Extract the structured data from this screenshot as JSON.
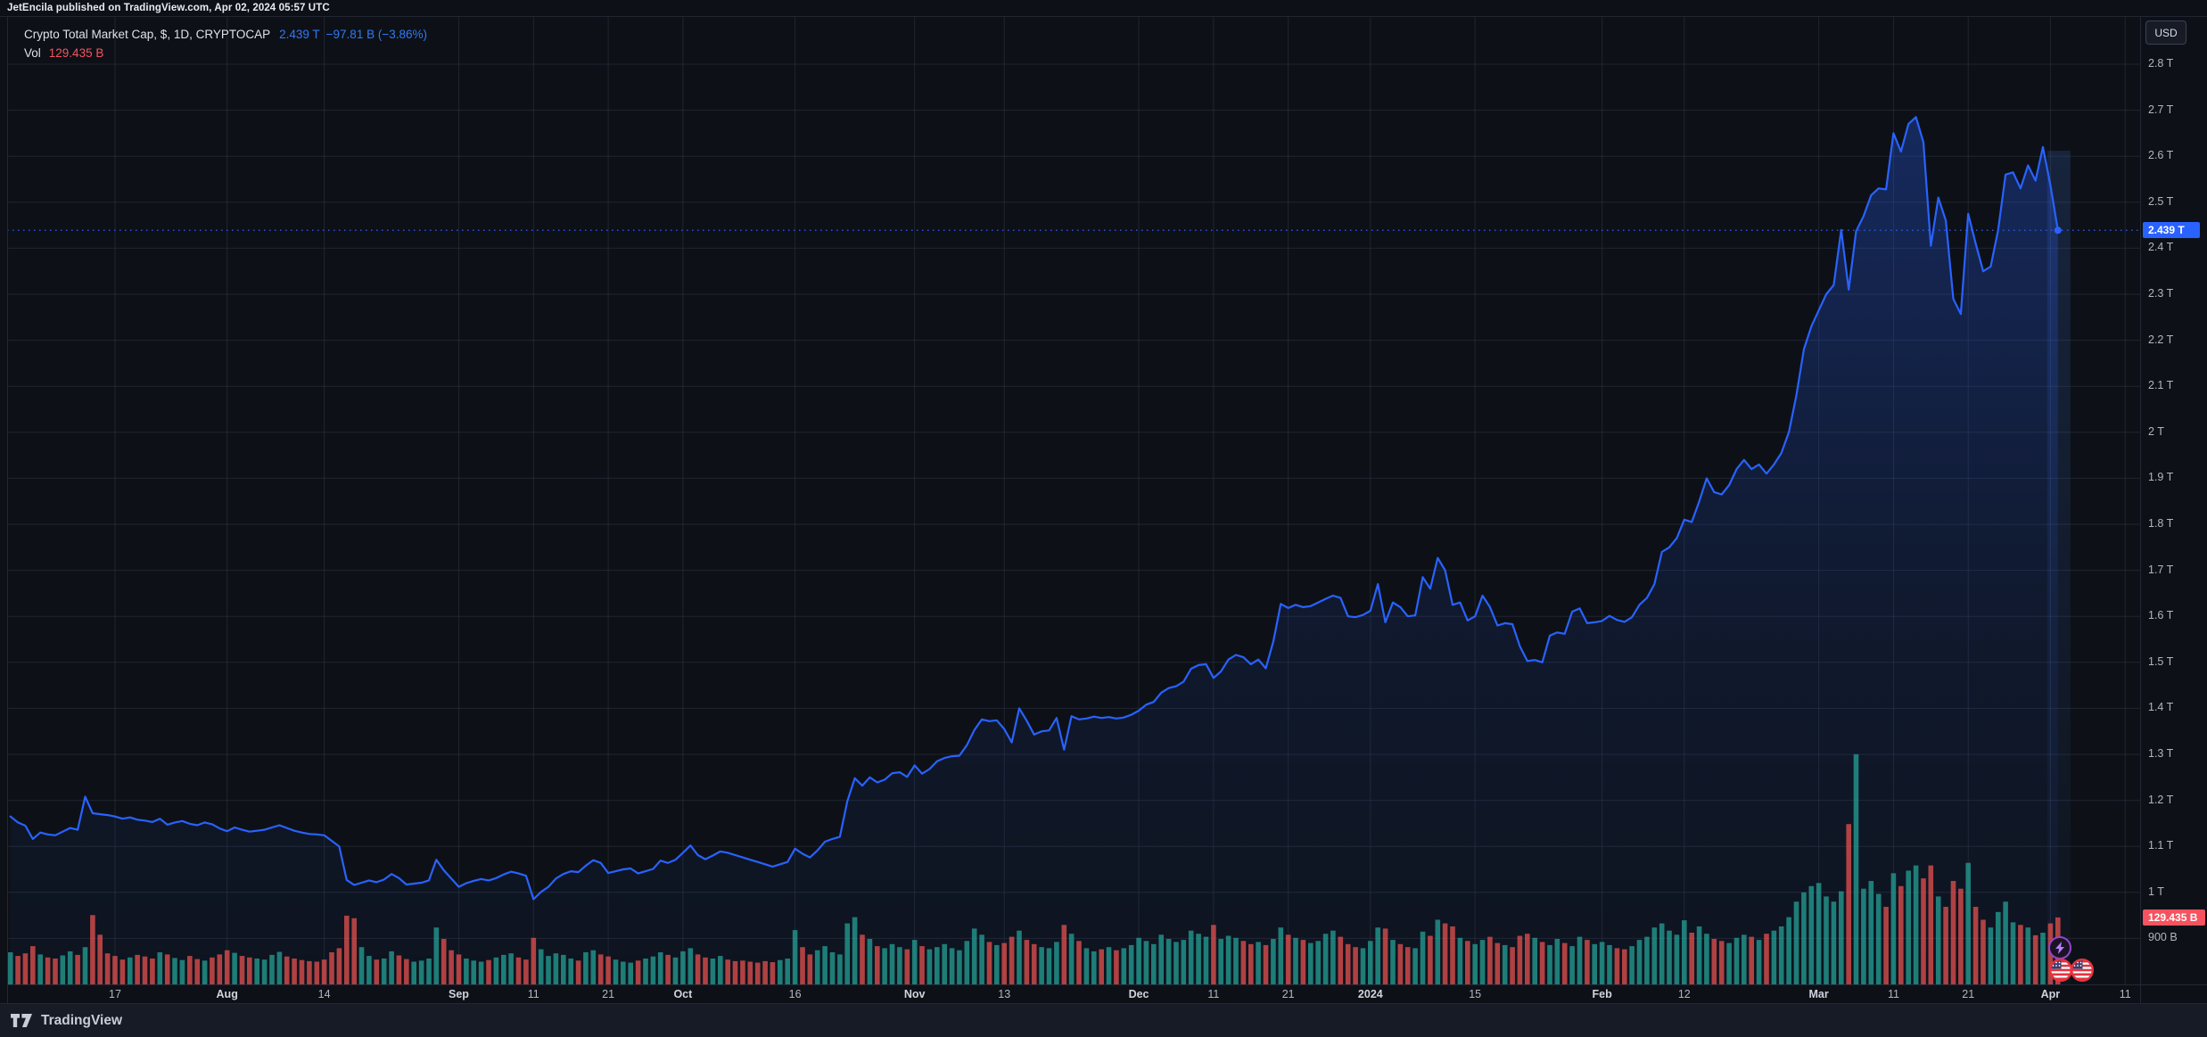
{
  "attribution": {
    "text": "JetEncila published on TradingView.com, Apr 02, 2024 05:57 UTC"
  },
  "legend": {
    "title": "Crypto Total Market Cap, $, 1D, CRYPTOCAP",
    "value": "2.439 T",
    "change": "−97.81 B (−3.86%)",
    "vol_label": "Vol",
    "vol_value": "129.435 B"
  },
  "price_axis": {
    "currency_button": "USD",
    "last_price_label": "2.439 T",
    "volume_label": "129.435 B",
    "ticks": [
      {
        "label": "2.8 T",
        "v": 2.8
      },
      {
        "label": "2.7 T",
        "v": 2.7
      },
      {
        "label": "2.6 T",
        "v": 2.6
      },
      {
        "label": "2.5 T",
        "v": 2.5
      },
      {
        "label": "2.4 T",
        "v": 2.4
      },
      {
        "label": "2.3 T",
        "v": 2.3
      },
      {
        "label": "2.2 T",
        "v": 2.2
      },
      {
        "label": "2.1 T",
        "v": 2.1
      },
      {
        "label": "2 T",
        "v": 2.0
      },
      {
        "label": "1.9 T",
        "v": 1.9
      },
      {
        "label": "1.8 T",
        "v": 1.8
      },
      {
        "label": "1.7 T",
        "v": 1.7
      },
      {
        "label": "1.6 T",
        "v": 1.6
      },
      {
        "label": "1.5 T",
        "v": 1.5
      },
      {
        "label": "1.4 T",
        "v": 1.4
      },
      {
        "label": "1.3 T",
        "v": 1.3
      },
      {
        "label": "1.2 T",
        "v": 1.2
      },
      {
        "label": "1.1 T",
        "v": 1.1
      },
      {
        "label": "1 T",
        "v": 1.0
      },
      {
        "label": "900 B",
        "v": 0.9
      }
    ]
  },
  "time_axis": {
    "ticks": [
      {
        "label": "17",
        "d": 14
      },
      {
        "label": "Aug",
        "d": 29,
        "month": true
      },
      {
        "label": "14",
        "d": 42
      },
      {
        "label": "Sep",
        "d": 60,
        "month": true
      },
      {
        "label": "11",
        "d": 70
      },
      {
        "label": "21",
        "d": 80
      },
      {
        "label": "Oct",
        "d": 90,
        "month": true
      },
      {
        "label": "16",
        "d": 105
      },
      {
        "label": "Nov",
        "d": 121,
        "month": true
      },
      {
        "label": "13",
        "d": 133
      },
      {
        "label": "Dec",
        "d": 151,
        "month": true
      },
      {
        "label": "11",
        "d": 161
      },
      {
        "label": "21",
        "d": 171
      },
      {
        "label": "2024",
        "d": 182,
        "month": true
      },
      {
        "label": "15",
        "d": 196
      },
      {
        "label": "Feb",
        "d": 213,
        "month": true
      },
      {
        "label": "12",
        "d": 224
      },
      {
        "label": "Mar",
        "d": 242,
        "month": true
      },
      {
        "label": "11",
        "d": 252
      },
      {
        "label": "21",
        "d": 262
      },
      {
        "label": "Apr",
        "d": 273,
        "month": true
      },
      {
        "label": "11",
        "d": 283
      }
    ]
  },
  "events": [
    {
      "icon": "lightning-event-icon",
      "ring": "#9146c8",
      "glyph": "#b87ef7"
    },
    {
      "icon": "us-flag-event-icon"
    },
    {
      "icon": "us-flag-event-icon"
    }
  ],
  "branding": {
    "name": "TradingView"
  },
  "chart_data": {
    "type": "area",
    "title": "Crypto Total Market Cap",
    "symbol": "CRYPTOCAP",
    "currency": "$",
    "interval": "1D",
    "start_date": "2023-07-03",
    "end_date": "2024-04-02",
    "last_close_T": 2.439,
    "change_B": -97.81,
    "change_pct": -3.86,
    "last_volume_B": 129.435,
    "ylim_T": [
      0.85,
      2.85
    ],
    "grid": true,
    "colors": {
      "line": "#2962ff",
      "area_top": "rgba(41,98,255,0.30)",
      "area_bottom": "rgba(41,98,255,0.03)",
      "vol_up": "#26a69a",
      "vol_down": "#ef5350",
      "price_label_bg": "#2962ff",
      "vol_label_bg": "#f7525f"
    },
    "close_T": [
      1.165,
      1.152,
      1.145,
      1.116,
      1.13,
      1.126,
      1.124,
      1.132,
      1.14,
      1.136,
      1.208,
      1.172,
      1.17,
      1.168,
      1.165,
      1.16,
      1.163,
      1.158,
      1.156,
      1.153,
      1.16,
      1.147,
      1.152,
      1.155,
      1.149,
      1.146,
      1.152,
      1.148,
      1.139,
      1.133,
      1.141,
      1.136,
      1.132,
      1.134,
      1.136,
      1.141,
      1.146,
      1.14,
      1.134,
      1.13,
      1.127,
      1.126,
      1.124,
      1.112,
      1.1,
      1.027,
      1.016,
      1.021,
      1.026,
      1.022,
      1.028,
      1.04,
      1.031,
      1.017,
      1.019,
      1.021,
      1.026,
      1.071,
      1.048,
      1.03,
      1.012,
      1.02,
      1.025,
      1.029,
      1.026,
      1.031,
      1.039,
      1.045,
      1.041,
      1.036,
      0.985,
      1.001,
      1.012,
      1.03,
      1.04,
      1.046,
      1.044,
      1.058,
      1.07,
      1.064,
      1.042,
      1.046,
      1.05,
      1.052,
      1.041,
      1.046,
      1.051,
      1.069,
      1.064,
      1.071,
      1.086,
      1.102,
      1.081,
      1.072,
      1.08,
      1.089,
      1.086,
      1.081,
      1.076,
      1.071,
      1.066,
      1.061,
      1.056,
      1.061,
      1.066,
      1.095,
      1.084,
      1.076,
      1.091,
      1.11,
      1.116,
      1.121,
      1.198,
      1.248,
      1.232,
      1.25,
      1.239,
      1.245,
      1.259,
      1.261,
      1.251,
      1.276,
      1.258,
      1.268,
      1.285,
      1.292,
      1.296,
      1.297,
      1.32,
      1.353,
      1.376,
      1.372,
      1.374,
      1.355,
      1.326,
      1.4,
      1.373,
      1.343,
      1.35,
      1.352,
      1.379,
      1.31,
      1.383,
      1.376,
      1.378,
      1.382,
      1.379,
      1.381,
      1.378,
      1.38,
      1.386,
      1.395,
      1.408,
      1.414,
      1.434,
      1.444,
      1.448,
      1.458,
      1.486,
      1.494,
      1.496,
      1.466,
      1.48,
      1.506,
      1.516,
      1.511,
      1.496,
      1.506,
      1.487,
      1.545,
      1.627,
      1.618,
      1.625,
      1.62,
      1.622,
      1.63,
      1.638,
      1.645,
      1.64,
      1.6,
      1.598,
      1.603,
      1.612,
      1.67,
      1.587,
      1.63,
      1.62,
      1.6,
      1.602,
      1.685,
      1.66,
      1.727,
      1.7,
      1.625,
      1.63,
      1.591,
      1.6,
      1.645,
      1.62,
      1.58,
      1.585,
      1.583,
      1.535,
      1.503,
      1.505,
      1.5,
      1.558,
      1.565,
      1.562,
      1.61,
      1.617,
      1.585,
      1.587,
      1.59,
      1.601,
      1.592,
      1.588,
      1.598,
      1.625,
      1.64,
      1.67,
      1.74,
      1.75,
      1.77,
      1.81,
      1.805,
      1.85,
      1.9,
      1.87,
      1.865,
      1.885,
      1.92,
      1.94,
      1.92,
      1.93,
      1.91,
      1.93,
      1.955,
      2.0,
      2.08,
      2.18,
      2.23,
      2.265,
      2.3,
      2.32,
      2.44,
      2.31,
      2.437,
      2.47,
      2.515,
      2.53,
      2.528,
      2.65,
      2.61,
      2.67,
      2.685,
      2.63,
      2.405,
      2.51,
      2.46,
      2.29,
      2.257,
      2.475,
      2.41,
      2.35,
      2.36,
      2.44,
      2.56,
      2.565,
      2.53,
      2.58,
      2.547,
      2.62,
      2.537,
      2.439
    ],
    "volume_B": [
      62,
      55,
      60,
      74,
      58,
      52,
      50,
      56,
      64,
      57,
      72,
      134,
      96,
      60,
      55,
      48,
      52,
      57,
      54,
      50,
      62,
      58,
      51,
      47,
      55,
      49,
      46,
      52,
      58,
      66,
      61,
      55,
      52,
      50,
      48,
      57,
      63,
      54,
      50,
      47,
      45,
      44,
      48,
      62,
      70,
      133,
      128,
      72,
      55,
      48,
      50,
      64,
      56,
      49,
      44,
      46,
      50,
      110,
      88,
      66,
      58,
      50,
      46,
      44,
      47,
      52,
      57,
      60,
      52,
      48,
      90,
      68,
      55,
      60,
      57,
      50,
      46,
      62,
      66,
      58,
      54,
      48,
      44,
      42,
      46,
      50,
      54,
      62,
      57,
      52,
      64,
      70,
      58,
      52,
      50,
      55,
      48,
      45,
      46,
      44,
      42,
      45,
      43,
      47,
      50,
      105,
      72,
      58,
      66,
      74,
      62,
      58,
      118,
      130,
      96,
      88,
      74,
      70,
      78,
      72,
      68,
      86,
      74,
      68,
      72,
      78,
      70,
      66,
      84,
      108,
      96,
      82,
      76,
      80,
      92,
      104,
      86,
      78,
      72,
      70,
      82,
      115,
      98,
      84,
      70,
      64,
      68,
      72,
      66,
      70,
      76,
      90,
      84,
      78,
      96,
      88,
      82,
      86,
      104,
      98,
      92,
      115,
      88,
      94,
      90,
      84,
      78,
      82,
      76,
      88,
      110,
      96,
      90,
      86,
      80,
      84,
      98,
      104,
      92,
      78,
      72,
      70,
      84,
      110,
      108,
      86,
      78,
      72,
      70,
      102,
      94,
      125,
      118,
      112,
      90,
      84,
      78,
      86,
      92,
      80,
      76,
      72,
      94,
      98,
      90,
      82,
      76,
      88,
      80,
      74,
      92,
      86,
      78,
      82,
      76,
      70,
      68,
      74,
      86,
      92,
      110,
      118,
      104,
      96,
      124,
      100,
      112,
      98,
      88,
      84,
      80,
      90,
      96,
      92,
      86,
      98,
      104,
      112,
      130,
      160,
      178,
      190,
      196,
      170,
      160,
      180,
      310,
      445,
      185,
      200,
      175,
      150,
      215,
      190,
      220,
      230,
      205,
      230,
      170,
      150,
      200,
      185,
      235,
      150,
      125,
      110,
      140,
      160,
      120,
      115,
      110,
      95,
      100,
      118,
      129.435
    ]
  }
}
